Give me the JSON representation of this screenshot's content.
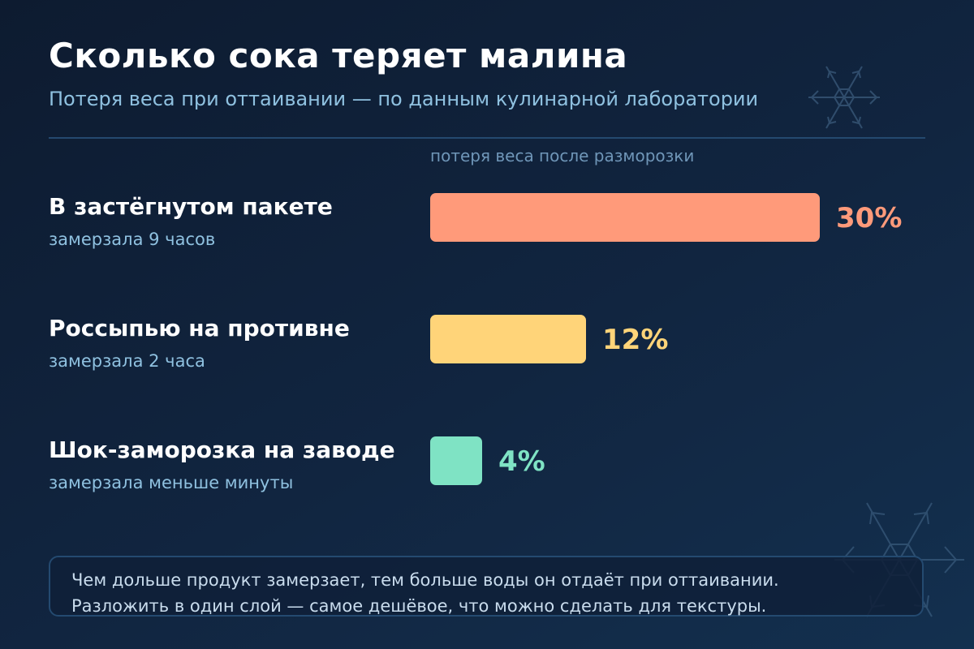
{
  "title": "Сколько сока теряет малина",
  "subtitle": "Потеря веса при оттаивании — по данным кулинарной лаборатории",
  "axis_caption": "потеря веса после разморозки",
  "note": {
    "line1": "Чем дольше продукт замерзает, тем больше воды он отдаёт при оттаивании.",
    "line2": "Разложить в один слой — самое дешёвое, что можно сделать для текстуры."
  },
  "icons": [
    "snowflake-icon",
    "snowflake-icon"
  ],
  "colors": {
    "background": "#0f2038",
    "bag": "#ff9a7a",
    "tray": "#ffd479",
    "shock": "#7fe3c4"
  },
  "rows": [
    {
      "label": "В застёгнутом пакете",
      "sub": "замерзала 9 часов",
      "value_label": "30%"
    },
    {
      "label": "Россыпью на противне",
      "sub": "замерзала 2 часа",
      "value_label": "12%"
    },
    {
      "label": "Шок-заморозка на заводе",
      "sub": "замерзала меньше минуты",
      "value_label": "4%"
    }
  ],
  "chart_data": {
    "type": "bar",
    "orientation": "horizontal",
    "title": "Сколько сока теряет малина",
    "subtitle": "Потеря веса при оттаивании — по данным кулинарной лаборатории",
    "xlabel": "потеря веса после разморозки",
    "ylabel": "",
    "categories": [
      "В застёгнутом пакете",
      "Россыпью на противне",
      "Шок-заморозка на заводе"
    ],
    "values": [
      30,
      12,
      4
    ],
    "unit": "%",
    "colors": [
      "#ff9a7a",
      "#ffd479",
      "#7fe3c4"
    ],
    "xlim": [
      0,
      30
    ],
    "grid": false,
    "legend": "none"
  }
}
